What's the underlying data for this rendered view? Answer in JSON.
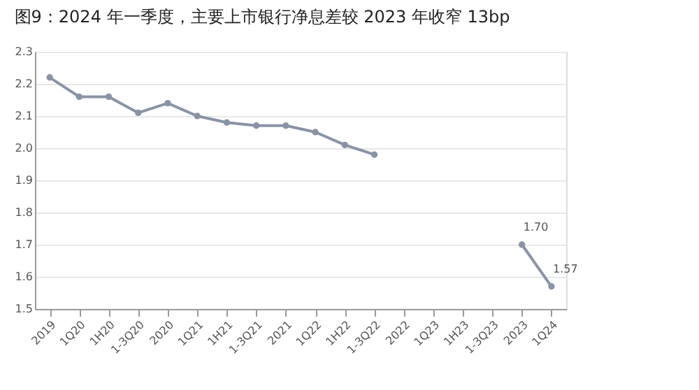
{
  "chart_data": {
    "type": "line",
    "title": "图9：2024 年一季度，主要上市银行净息差较 2023 年收窄 13bp",
    "categories": [
      "2019",
      "1Q20",
      "1H20",
      "1-3Q20",
      "2020",
      "1Q21",
      "1H21",
      "1-3Q21",
      "2021",
      "1Q22",
      "1H22",
      "1-3Q22",
      "2022",
      "1Q23",
      "1H23",
      "1-3Q23",
      "2023",
      "1Q24"
    ],
    "series": [
      {
        "color": "#8a93a6",
        "values": [
          2.22,
          2.16,
          2.16,
          2.11,
          2.14,
          2.1,
          2.08,
          2.07,
          2.07,
          2.05,
          2.01,
          1.98,
          null,
          null,
          null,
          null,
          1.7,
          1.57
        ],
        "value_labels": [
          null,
          null,
          null,
          null,
          null,
          null,
          null,
          null,
          null,
          null,
          null,
          null,
          null,
          null,
          null,
          null,
          "1.70",
          "1.57"
        ]
      }
    ],
    "ylim": [
      1.5,
      2.3
    ],
    "yticks": [
      1.5,
      1.6,
      1.7,
      1.8,
      1.9,
      {
        "value": 2.0,
        "label": "2.0"
      },
      2.1,
      2.2,
      2.3
    ],
    "grid": "y",
    "marker": "circle",
    "line_style": "solid"
  }
}
